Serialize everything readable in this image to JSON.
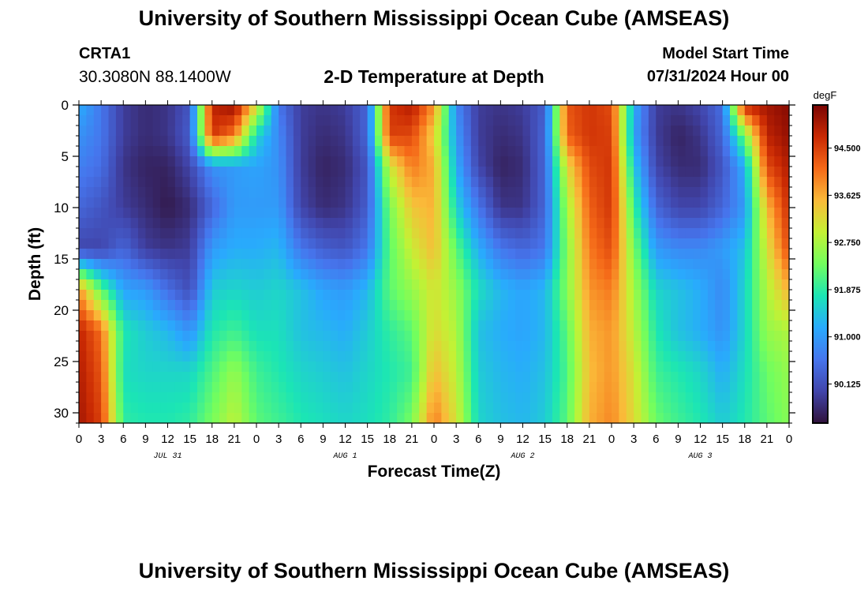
{
  "header": {
    "title": "University of Southern Mississippi Ocean Cube (AMSEAS)",
    "station": "CRTA1",
    "coords": "30.3080N  88.1400W",
    "plot_title": "2-D Temperature at Depth",
    "model_start_label": "Model Start Time",
    "model_start_value": "07/31/2024 Hour 00"
  },
  "footer": {
    "title": "University of Southern Mississippi Ocean Cube (AMSEAS)"
  },
  "chart_data": {
    "type": "heatmap",
    "title": "2-D Temperature at Depth",
    "xlabel": "Forecast Time(Z)",
    "ylabel": "Depth (ft)",
    "x_range_hours": [
      0,
      96
    ],
    "ylim": [
      0,
      31
    ],
    "x_tick_labels": [
      "0",
      "3",
      "6",
      "9",
      "12",
      "15",
      "18",
      "21",
      "0",
      "3",
      "6",
      "9",
      "12",
      "15",
      "18",
      "21",
      "0",
      "3",
      "6",
      "9",
      "12",
      "15",
      "18",
      "21",
      "0",
      "3",
      "6",
      "9",
      "12",
      "15",
      "18",
      "21",
      "0"
    ],
    "date_labels": [
      {
        "hour": 12,
        "label": "JUL 31"
      },
      {
        "hour": 36,
        "label": "AUG 1"
      },
      {
        "hour": 60,
        "label": "AUG 2"
      },
      {
        "hour": 84,
        "label": "AUG 3"
      }
    ],
    "y_ticks": [
      0,
      5,
      10,
      15,
      20,
      25,
      30
    ],
    "colorbar": {
      "unit": "degF",
      "min": 89.4,
      "max": 95.3,
      "tick_values": [
        90.125,
        91.0,
        91.875,
        92.75,
        93.625,
        94.5
      ],
      "tick_labels": [
        "90.125",
        "91.000",
        "91.875",
        "92.750",
        "93.625",
        "94.500"
      ]
    },
    "depths_ft": [
      0,
      3,
      6,
      10,
      14,
      18,
      22,
      26,
      31
    ],
    "times_hours": [
      0,
      3,
      6,
      9,
      12,
      15,
      18,
      21,
      24,
      27,
      30,
      33,
      36,
      39,
      42,
      45,
      48,
      51,
      54,
      57,
      60,
      63,
      66,
      69,
      72,
      75,
      78,
      81,
      84,
      87,
      90,
      93,
      96
    ],
    "values_degF": [
      [
        91.2,
        90.6,
        89.9,
        89.7,
        89.8,
        90.2,
        94.8,
        95.1,
        93.2,
        90.6,
        89.9,
        89.8,
        89.9,
        90.4,
        94.6,
        94.9,
        93.8,
        90.8,
        89.9,
        89.8,
        89.9,
        90.3,
        94.3,
        94.6,
        94.4,
        91.2,
        89.9,
        89.8,
        90.0,
        90.5,
        94.8,
        95.0,
        95.2
      ],
      [
        90.9,
        90.6,
        89.9,
        89.7,
        89.8,
        90.3,
        94.6,
        94.0,
        91.6,
        90.8,
        89.9,
        89.7,
        89.8,
        90.4,
        94.5,
        94.4,
        93.3,
        91.0,
        89.9,
        89.7,
        89.8,
        90.4,
        94.2,
        94.6,
        94.5,
        91.1,
        89.9,
        89.6,
        89.8,
        90.4,
        92.4,
        94.8,
        95.1
      ],
      [
        90.7,
        90.5,
        89.8,
        89.6,
        89.6,
        90.0,
        90.9,
        91.0,
        91.1,
        90.9,
        89.9,
        89.6,
        89.7,
        90.2,
        93.0,
        94.0,
        93.6,
        91.2,
        90.0,
        89.6,
        89.7,
        90.4,
        93.2,
        94.4,
        94.6,
        91.5,
        90.0,
        89.7,
        89.7,
        90.2,
        91.2,
        94.4,
        94.9
      ],
      [
        90.4,
        90.2,
        89.9,
        89.7,
        89.5,
        89.7,
        90.4,
        91.0,
        91.0,
        91.0,
        90.0,
        89.7,
        89.8,
        90.3,
        92.4,
        93.4,
        93.6,
        91.6,
        90.6,
        89.8,
        89.8,
        90.4,
        92.7,
        94.2,
        94.6,
        92.0,
        90.4,
        90.0,
        90.0,
        90.4,
        91.0,
        93.5,
        94.7
      ],
      [
        90.0,
        90.0,
        90.4,
        89.9,
        89.8,
        89.9,
        91.0,
        91.2,
        91.2,
        91.3,
        90.6,
        90.3,
        90.2,
        90.6,
        92.2,
        93.0,
        93.5,
        92.2,
        91.2,
        90.6,
        90.4,
        90.6,
        92.5,
        94.0,
        94.4,
        92.4,
        91.0,
        90.8,
        90.8,
        91.0,
        91.4,
        93.1,
        94.4
      ],
      [
        93.8,
        92.2,
        91.1,
        91.0,
        90.5,
        90.1,
        91.5,
        91.6,
        91.5,
        91.6,
        91.4,
        91.1,
        91.0,
        91.3,
        92.2,
        92.6,
        93.1,
        92.6,
        91.7,
        91.3,
        91.1,
        91.3,
        92.5,
        93.8,
        94.0,
        92.7,
        91.6,
        91.4,
        91.2,
        90.8,
        91.6,
        92.8,
        93.6
      ],
      [
        94.8,
        94.1,
        91.8,
        91.5,
        91.3,
        90.9,
        91.8,
        92.0,
        91.7,
        91.7,
        91.4,
        91.3,
        91.2,
        91.5,
        91.9,
        92.2,
        93.2,
        92.8,
        91.4,
        91.2,
        91.1,
        91.3,
        92.2,
        93.6,
        93.8,
        92.9,
        91.8,
        91.4,
        91.2,
        90.9,
        91.6,
        92.6,
        92.8
      ],
      [
        94.9,
        94.3,
        91.7,
        91.6,
        91.6,
        91.6,
        92.1,
        92.6,
        92.0,
        91.8,
        91.6,
        91.5,
        91.4,
        91.6,
        91.8,
        92.0,
        93.5,
        92.9,
        91.5,
        91.3,
        91.2,
        91.4,
        92.1,
        93.5,
        93.8,
        93.1,
        92.0,
        91.8,
        91.6,
        91.2,
        91.7,
        92.3,
        92.6
      ],
      [
        95.0,
        94.5,
        91.9,
        91.8,
        91.8,
        91.9,
        92.4,
        92.9,
        92.2,
        92.0,
        91.8,
        91.7,
        91.6,
        91.7,
        91.9,
        92.4,
        94.0,
        93.1,
        91.6,
        91.4,
        91.3,
        91.5,
        92.2,
        93.6,
        93.9,
        93.2,
        92.3,
        92.0,
        91.8,
        91.5,
        91.8,
        92.2,
        92.5
      ]
    ]
  }
}
